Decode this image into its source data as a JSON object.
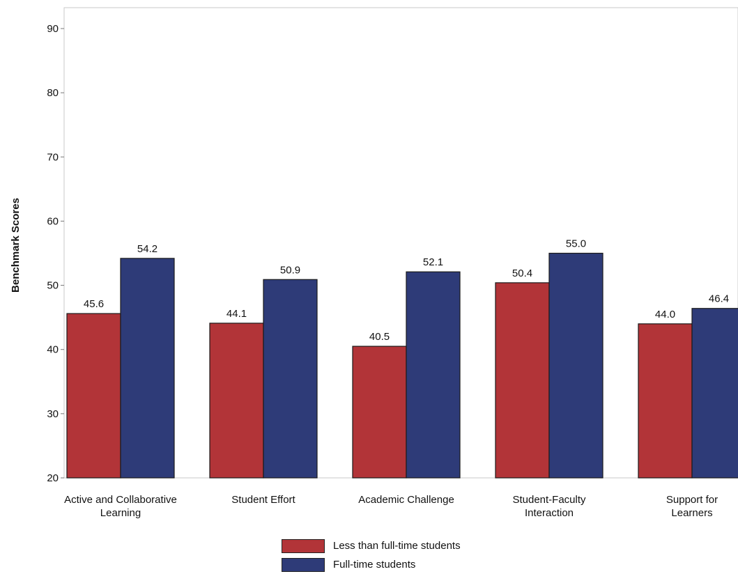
{
  "chart_data": {
    "type": "bar",
    "ylabel": "Benchmark Scores",
    "ylim": [
      20,
      90
    ],
    "yticks": [
      20,
      30,
      40,
      50,
      60,
      70,
      80,
      90
    ],
    "categories": [
      [
        "Active and Collaborative",
        "Learning"
      ],
      [
        "Student Effort"
      ],
      [
        "Academic Challenge"
      ],
      [
        "Student-Faculty",
        "Interaction"
      ],
      [
        "Support for",
        "Learners"
      ]
    ],
    "series": [
      {
        "name": "Less than full-time students",
        "color": "#b23438",
        "values": [
          45.6,
          44.1,
          40.5,
          50.4,
          44.0
        ]
      },
      {
        "name": "Full-time students",
        "color": "#2e3b78",
        "values": [
          54.2,
          50.9,
          52.1,
          55.0,
          46.4
        ]
      }
    ],
    "legend_position": "bottom"
  }
}
